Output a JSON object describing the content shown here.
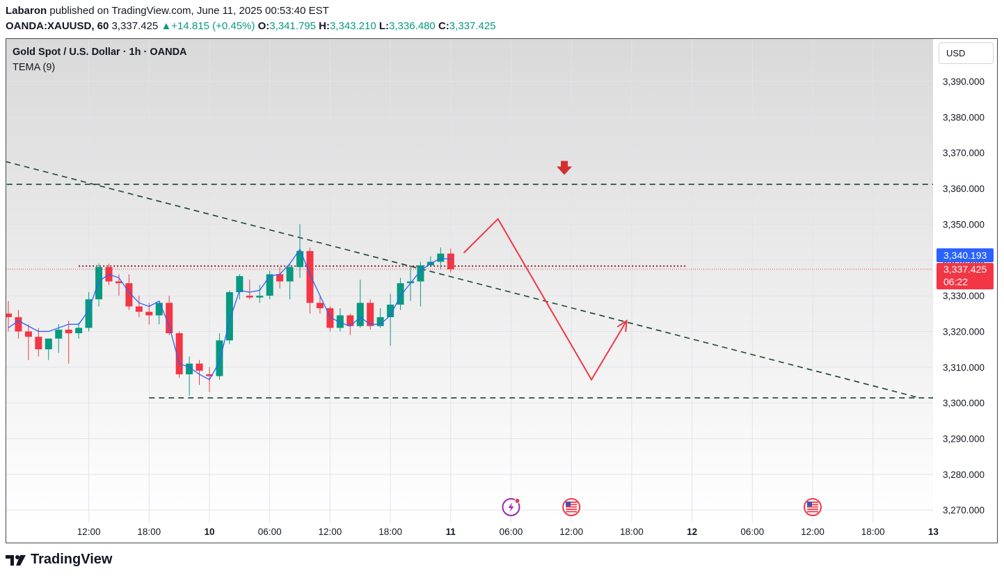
{
  "header": {
    "author": "Labaron",
    "published_text": "published on TradingView.com, June 11, 2025 00:53:40 EST",
    "symbol": "OANDA:XAUUSD, 60",
    "last": "3,337.425",
    "change_arrow": "▲",
    "change": "+14.815 (+0.45%)",
    "o_label": "O:",
    "o": "3,341.795",
    "h_label": "H:",
    "h": "3,343.210",
    "l_label": "L:",
    "l": "3,336.480",
    "c_label": "C:",
    "c": "3,337.425"
  },
  "legend": {
    "title": "Gold Spot / U.S. Dollar · 1h · OANDA",
    "indicator": "TEMA (9)"
  },
  "currency_button": "USD",
  "price_tags": {
    "tema_value": "3,340.193",
    "last_price": "3,337.425",
    "countdown": "06:22"
  },
  "brand": "TradingView",
  "colors": {
    "up": "#089981",
    "down": "#f23645",
    "tema": "#2962ff",
    "trendline": "#1b4332",
    "projection": "#f23645",
    "event_icon": "#f23645",
    "flash_icon": "#9c27b0"
  },
  "chart_data": {
    "type": "candlestick",
    "title": "Gold Spot / U.S. Dollar · 1h · OANDA",
    "interval": "1h",
    "ylim": [
      3263,
      3403
    ],
    "y_ticks": [
      "3,390.000",
      "3,380.000",
      "3,370.000",
      "3,360.000",
      "3,350.000",
      "3,340.000",
      "3,330.000",
      "3,320.000",
      "3,310.000",
      "3,300.000",
      "3,290.000",
      "3,280.000",
      "3,270.000"
    ],
    "y_tick_values": [
      3390,
      3380,
      3370,
      3360,
      3350,
      3340,
      3330,
      3320,
      3310,
      3300,
      3290,
      3280,
      3270
    ],
    "x_labels": [
      {
        "bar": 8,
        "label": "12:00",
        "bold": false
      },
      {
        "bar": 14,
        "label": "18:00",
        "bold": false
      },
      {
        "bar": 20,
        "label": "10",
        "bold": true
      },
      {
        "bar": 26,
        "label": "06:00",
        "bold": false
      },
      {
        "bar": 32,
        "label": "12:00",
        "bold": false
      },
      {
        "bar": 38,
        "label": "18:00",
        "bold": false
      },
      {
        "bar": 44,
        "label": "11",
        "bold": true
      },
      {
        "bar": 50,
        "label": "06:00",
        "bold": false
      },
      {
        "bar": 56,
        "label": "12:00",
        "bold": false
      },
      {
        "bar": 62,
        "label": "18:00",
        "bold": false
      },
      {
        "bar": 68,
        "label": "12",
        "bold": true
      },
      {
        "bar": 74,
        "label": "06:00",
        "bold": false
      },
      {
        "bar": 80,
        "label": "12:00",
        "bold": false
      },
      {
        "bar": 86,
        "label": "18:00",
        "bold": false
      },
      {
        "bar": 92,
        "label": "13",
        "bold": true
      }
    ],
    "candles": [
      [
        3325.0,
        3328.5,
        3320.0,
        3324.0
      ],
      [
        3324.0,
        3326.0,
        3318.0,
        3320.0
      ],
      [
        3320.0,
        3322.0,
        3312.0,
        3318.5
      ],
      [
        3318.5,
        3321.0,
        3313.0,
        3315.0
      ],
      [
        3315.0,
        3318.0,
        3312.0,
        3318.0
      ],
      [
        3318.0,
        3322.0,
        3314.0,
        3320.5
      ],
      [
        3320.5,
        3323.0,
        3311.0,
        3319.5
      ],
      [
        3319.5,
        3322.5,
        3318.0,
        3321.0
      ],
      [
        3321.0,
        3331.0,
        3320.0,
        3329.0
      ],
      [
        3329.0,
        3339.0,
        3327.0,
        3338.0
      ],
      [
        3338.0,
        3339.0,
        3333.0,
        3334.0
      ],
      [
        3334.0,
        3336.0,
        3330.0,
        3333.5
      ],
      [
        3333.5,
        3336.0,
        3326.0,
        3327.0
      ],
      [
        3327.0,
        3330.0,
        3324.0,
        3325.5
      ],
      [
        3325.5,
        3328.0,
        3322.0,
        3324.5
      ],
      [
        3324.5,
        3328.0,
        3322.0,
        3328.0
      ],
      [
        3328.0,
        3330.0,
        3319.0,
        3319.5
      ],
      [
        3319.5,
        3320.0,
        3307.0,
        3308.0
      ],
      [
        3308.0,
        3313.0,
        3302.0,
        3311.0
      ],
      [
        3311.0,
        3312.0,
        3305.0,
        3309.0
      ],
      [
        3308.0,
        3310.0,
        3303.0,
        3307.5
      ],
      [
        3307.5,
        3319.5,
        3306.5,
        3317.5
      ],
      [
        3317.5,
        3331.5,
        3316.5,
        3331.0
      ],
      [
        3331.0,
        3336.0,
        3329.0,
        3335.5
      ],
      [
        3330.0,
        3334.5,
        3329.0,
        3329.5
      ],
      [
        3329.5,
        3333.0,
        3328.0,
        3330.0
      ],
      [
        3330.0,
        3337.0,
        3329.0,
        3336.0
      ],
      [
        3336.0,
        3338.0,
        3332.0,
        3334.0
      ],
      [
        3334.0,
        3339.0,
        3329.0,
        3338.0
      ],
      [
        3338.0,
        3350.0,
        3335.0,
        3342.5
      ],
      [
        3342.5,
        3343.5,
        3325.0,
        3328.0
      ],
      [
        3328.0,
        3330.0,
        3325.0,
        3326.5
      ],
      [
        3326.5,
        3327.0,
        3320.0,
        3321.0
      ],
      [
        3321.0,
        3326.5,
        3320.0,
        3324.5
      ],
      [
        3324.5,
        3325.0,
        3319.0,
        3321.5
      ],
      [
        3321.5,
        3334.5,
        3321.0,
        3328.0
      ],
      [
        3328.0,
        3329.0,
        3320.5,
        3321.5
      ],
      [
        3321.5,
        3326.5,
        3321.0,
        3324.0
      ],
      [
        3324.0,
        3330.5,
        3316.0,
        3327.5
      ],
      [
        3327.5,
        3335.0,
        3326.0,
        3333.5
      ],
      [
        3333.5,
        3338.0,
        3328.5,
        3334.0
      ],
      [
        3334.0,
        3339.5,
        3327.0,
        3338.5
      ],
      [
        3338.5,
        3341.0,
        3338.0,
        3339.5
      ],
      [
        3339.5,
        3343.5,
        3337.5,
        3341.8
      ],
      [
        3341.8,
        3343.2,
        3336.5,
        3337.4
      ]
    ],
    "tema": [
      3321.0,
      3323.0,
      3321.5,
      3320.0,
      3320.0,
      3321.0,
      3322.0,
      3322.0,
      3326.0,
      3334.0,
      3336.0,
      3335.0,
      3331.0,
      3328.0,
      3327.0,
      3328.5,
      3321.5,
      3311.0,
      3310.0,
      3308.0,
      3306.5,
      3311.5,
      3323.0,
      3331.5,
      3331.0,
      3331.5,
      3335.5,
      3336.0,
      3339.0,
      3343.0,
      3336.0,
      3330.0,
      3324.0,
      3322.5,
      3321.5,
      3324.0,
      3322.0,
      3322.0,
      3324.5,
      3330.0,
      3333.5,
      3337.0,
      3339.0,
      3340.5,
      3340.2
    ],
    "lines": [
      {
        "name": "descending-trendline",
        "from": {
          "bar": -5,
          "price": 3371.0
        },
        "to": {
          "bar": 90.5,
          "price": 3301.5
        }
      },
      {
        "name": "resistance-3361",
        "from": {
          "bar": -5,
          "price": 3361.2
        },
        "to": {
          "bar": 101.5,
          "price": 3361.2
        }
      },
      {
        "name": "support-3301",
        "from": {
          "bar": 14,
          "price": 3301.4
        },
        "to": {
          "bar": 103,
          "price": 3301.4
        }
      },
      {
        "name": "range-high-3338",
        "from": {
          "bar": 7,
          "price": 3338.3
        },
        "to": {
          "bar": 67.5,
          "price": 3338.3
        }
      }
    ],
    "projection_path": [
      {
        "bar": 45.3,
        "price": 3342.0
      },
      {
        "bar": 48.7,
        "price": 3351.5
      },
      {
        "bar": 58.0,
        "price": 3306.5
      },
      {
        "bar": 61.5,
        "price": 3323.0
      }
    ],
    "sell_arrow": {
      "bar": 55.3,
      "price": 3365.0
    },
    "event_markers": [
      {
        "type": "flash",
        "bar": 50
      },
      {
        "type": "us-flag",
        "bar": 56
      },
      {
        "type": "us-flag",
        "bar": 80
      }
    ],
    "last_price": 3337.425,
    "tema_last": 3340.193
  }
}
